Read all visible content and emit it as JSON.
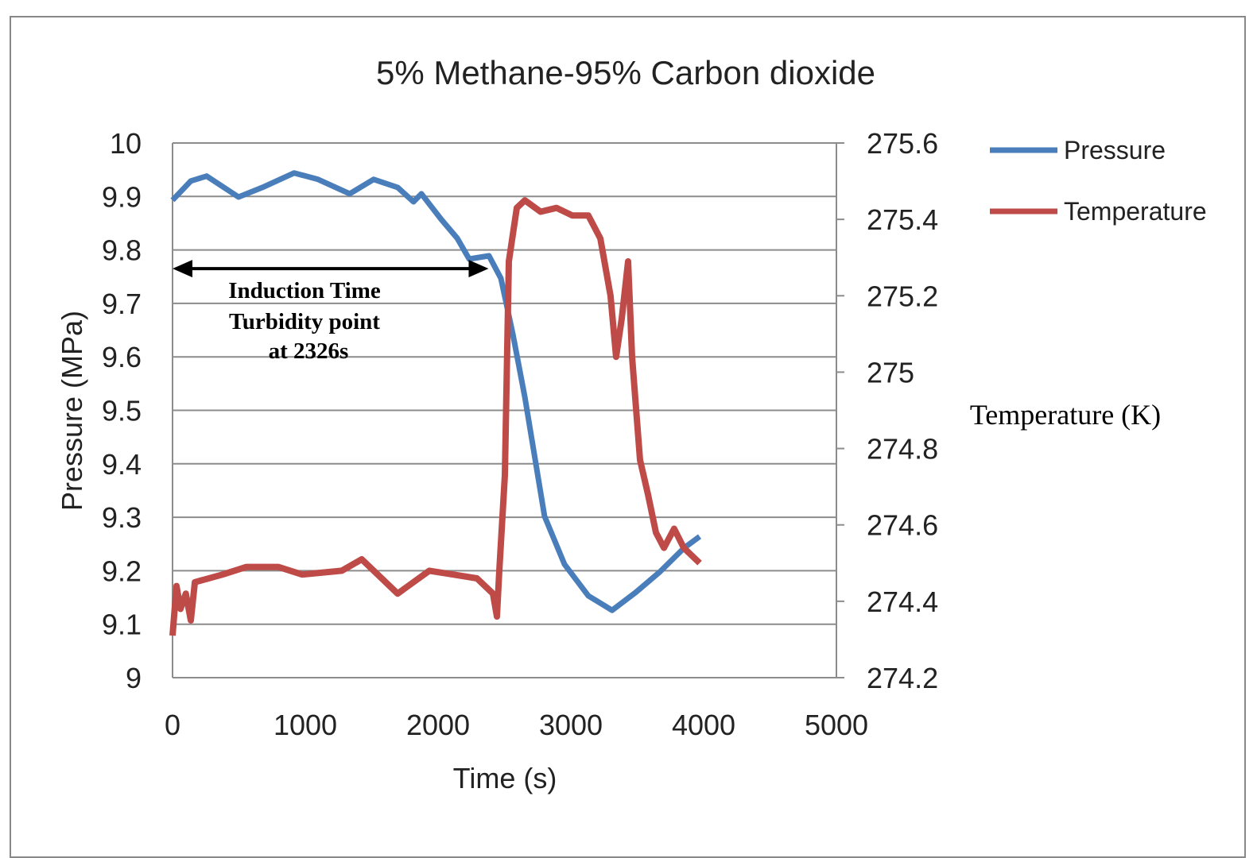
{
  "chart_data": {
    "type": "line",
    "title": "5% Methane-95% Carbon dioxide",
    "xlabel": "Time (s)",
    "ylabel": "Pressure (MPa)",
    "y2label": "Temperature (K)",
    "xlim": [
      0,
      5000
    ],
    "ylim": [
      9,
      10
    ],
    "y2lim": [
      274.2,
      275.6
    ],
    "xticks": [
      "0",
      "1000",
      "2000",
      "3000",
      "4000",
      "5000"
    ],
    "yticks": [
      "9",
      "9.1",
      "9.2",
      "9.3",
      "9.4",
      "9.5",
      "9.6",
      "9.7",
      "9.8",
      "9.9",
      "10"
    ],
    "y2ticks": [
      "274.2",
      "274.4",
      "274.6",
      "274.8",
      "275",
      "275.2",
      "275.4",
      "275.6"
    ],
    "grid": true,
    "legend_position": "right",
    "annotation": {
      "lines": [
        "Induction Time",
        "Turbidity point",
        "at 2326s"
      ],
      "arrow_from": 0,
      "arrow_to": 2380,
      "arrow_y": 9.765
    },
    "series": [
      {
        "name": "Pressure",
        "axis": "left",
        "color": "#4a7ebb",
        "x": [
          0,
          138,
          257,
          497,
          677,
          916,
          1096,
          1335,
          1515,
          1695,
          1815,
          1874,
          2024,
          2144,
          2234,
          2383,
          2473,
          2563,
          2653,
          2802,
          2952,
          3132,
          3311,
          3491,
          3671,
          3850,
          3970
        ],
        "y": [
          9.893,
          9.929,
          9.938,
          9.899,
          9.917,
          9.944,
          9.932,
          9.905,
          9.932,
          9.917,
          9.89,
          9.905,
          9.857,
          9.822,
          9.783,
          9.789,
          9.747,
          9.643,
          9.525,
          9.302,
          9.212,
          9.153,
          9.126,
          9.16,
          9.198,
          9.242,
          9.264
        ]
      },
      {
        "name": "Temperature",
        "axis": "right",
        "color": "#be4b48",
        "x": [
          0,
          30,
          60,
          100,
          138,
          168,
          377,
          557,
          796,
          976,
          1275,
          1425,
          1695,
          1934,
          2114,
          2293,
          2413,
          2443,
          2461,
          2503,
          2533,
          2593,
          2653,
          2772,
          2892,
          3012,
          3132,
          3222,
          3299,
          3341,
          3383,
          3431,
          3461,
          3521,
          3581,
          3641,
          3701,
          3778,
          3850,
          3970
        ],
        "y": [
          274.31,
          274.44,
          274.38,
          274.42,
          274.35,
          274.45,
          274.47,
          274.49,
          274.49,
          274.47,
          274.48,
          274.51,
          274.42,
          274.48,
          274.47,
          274.46,
          274.42,
          274.36,
          274.48,
          274.73,
          275.29,
          275.43,
          275.45,
          275.42,
          275.43,
          275.41,
          275.41,
          275.35,
          275.2,
          275.04,
          275.14,
          275.29,
          275.04,
          274.77,
          274.68,
          274.58,
          274.54,
          274.59,
          274.54,
          274.5
        ]
      }
    ]
  }
}
